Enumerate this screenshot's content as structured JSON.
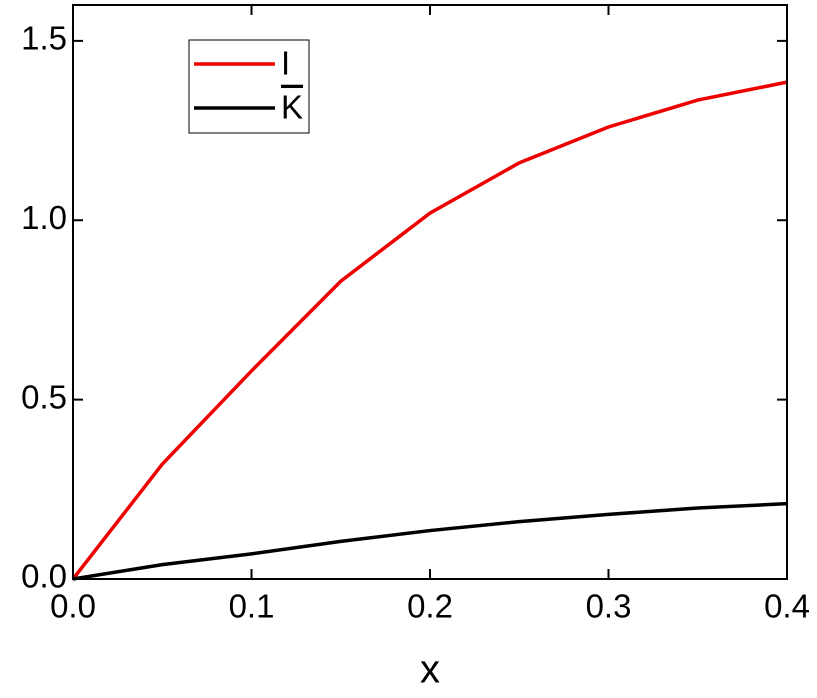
{
  "chart_data": {
    "type": "line",
    "x_label": "x",
    "x": [
      0,
      0.05,
      0.1,
      0.15,
      0.2,
      0.25,
      0.3,
      0.35,
      0.4
    ],
    "series": [
      {
        "name": "I",
        "color": "#ee0000",
        "values": [
          0,
          0.32,
          0.58,
          0.83,
          1.02,
          1.16,
          1.26,
          1.335,
          1.385
        ]
      },
      {
        "name": "K",
        "color": "#000000",
        "values": [
          0,
          0.04,
          0.07,
          0.105,
          0.135,
          0.16,
          0.18,
          0.198,
          0.21
        ]
      }
    ],
    "xlim": [
      0,
      0.4
    ],
    "xticks": [
      {
        "value": 0,
        "label": "0.0"
      },
      0.1,
      0.2,
      0.3,
      0.4
    ],
    "ylim": [
      0,
      1.6
    ],
    "yticks": [
      {
        "value": 0,
        "label": "0.0"
      },
      0.5,
      {
        "value": 1,
        "label": "1.0"
      },
      1.5
    ],
    "legend": "top-left"
  }
}
